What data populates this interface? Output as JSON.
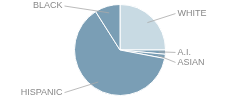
{
  "chart_data": {
    "type": "pie",
    "categories": [
      "WHITE",
      "A.I.",
      "ASIAN",
      "HISPANIC",
      "BLACK"
    ],
    "values": [
      25.0,
      1.5,
      1.5,
      63.0,
      9.0
    ],
    "colors": [
      "#c8dae3",
      "#7a9eb5",
      "#7a9eb5",
      "#7a9eb5",
      "#7a9eb5"
    ]
  }
}
